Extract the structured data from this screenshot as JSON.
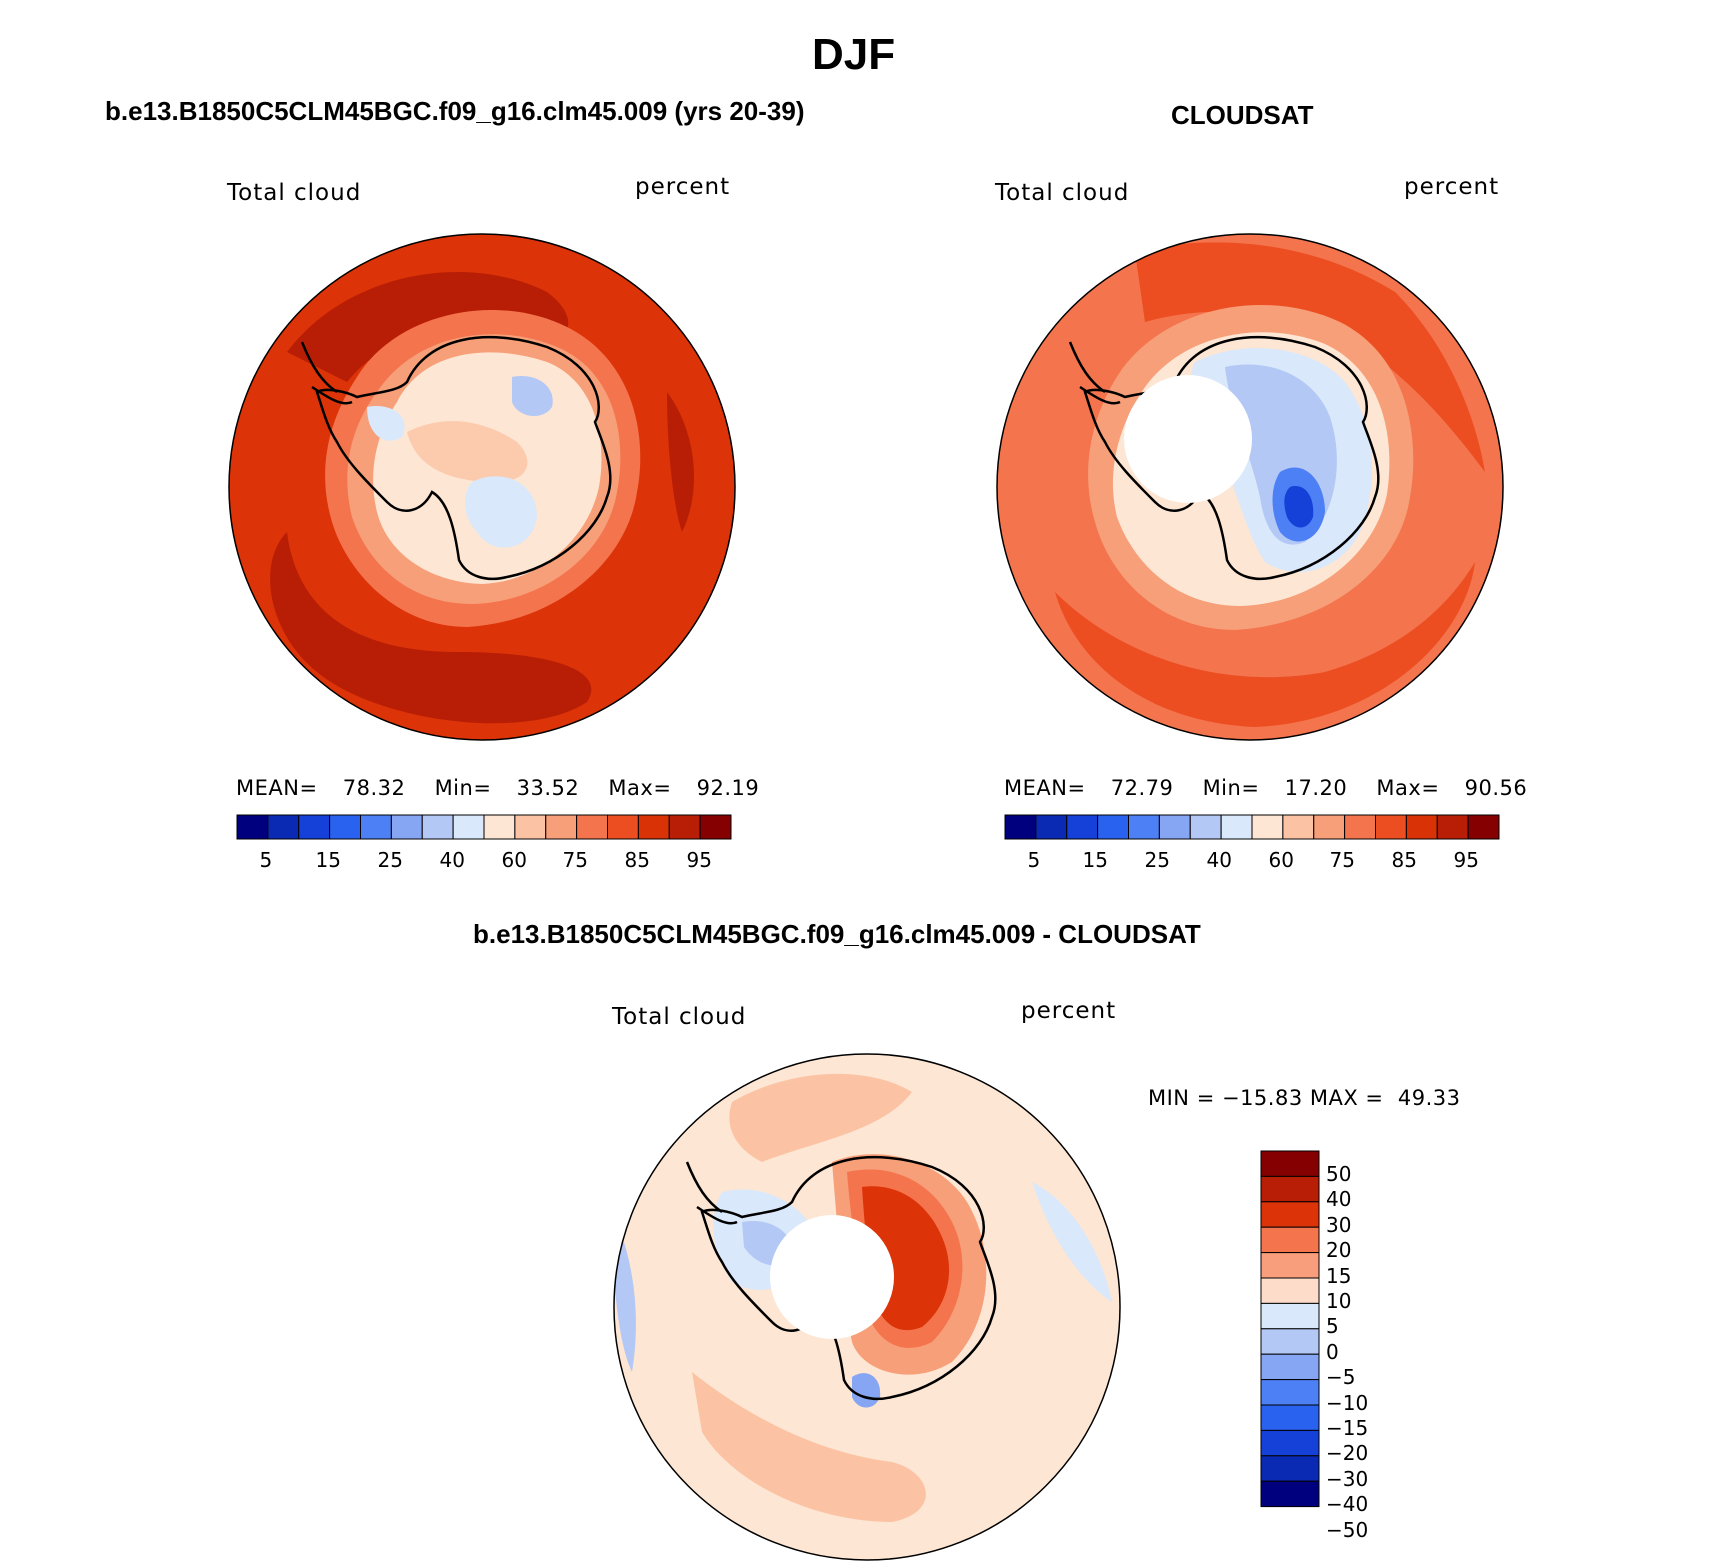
{
  "main_title": "DJF",
  "panels": [
    {
      "title": "b.e13.B1850C5CLM45BGC.f09_g16.clm45.009 (yrs 20-39)",
      "left_label": "Total cloud",
      "right_label": "percent",
      "stats": {
        "mean_label": "MEAN=",
        "mean": "78.32",
        "min_label": "Min=",
        "min": "33.52",
        "max_label": "Max=",
        "max": "92.19"
      }
    },
    {
      "title": "CLOUDSAT",
      "left_label": "Total cloud",
      "right_label": "percent",
      "stats": {
        "mean_label": "MEAN=",
        "mean": "72.79",
        "min_label": "Min=",
        "min": "17.20",
        "max_label": "Max=",
        "max": "90.56"
      }
    },
    {
      "title": "b.e13.B1850C5CLM45BGC.f09_g16.clm45.009 - CLOUDSAT",
      "left_label": "Total cloud",
      "right_label": "percent",
      "minmax": "MIN = −15.83 MAX =  49.33"
    }
  ],
  "abs_colorbar": {
    "colors": [
      "#00007f",
      "#0a2ab4",
      "#1541d8",
      "#2a62f0",
      "#4d7ff5",
      "#86a5f3",
      "#b4c8f6",
      "#d9e8fb",
      "#fde6d3",
      "#fbc3a3",
      "#f79f79",
      "#f3744d",
      "#ec4e22",
      "#d83206",
      "#b81e05",
      "#850000"
    ],
    "labels": [
      "5",
      "15",
      "25",
      "40",
      "60",
      "75",
      "85",
      "95"
    ]
  },
  "diff_colorbar": {
    "colors": [
      "#850000",
      "#b81e05",
      "#dc3308",
      "#f3744d",
      "#f89e7c",
      "#fdddca",
      "#d9e8fb",
      "#b4c8f6",
      "#86a5f3",
      "#4d7ff5",
      "#2a62f0",
      "#1541d8",
      "#0a2ab4",
      "#00007f"
    ],
    "labels": [
      "50",
      "40",
      "30",
      "20",
      "15",
      "10",
      "5",
      "0",
      "−5",
      "−10",
      "−15",
      "−20",
      "−30",
      "−40",
      "−50"
    ]
  }
}
